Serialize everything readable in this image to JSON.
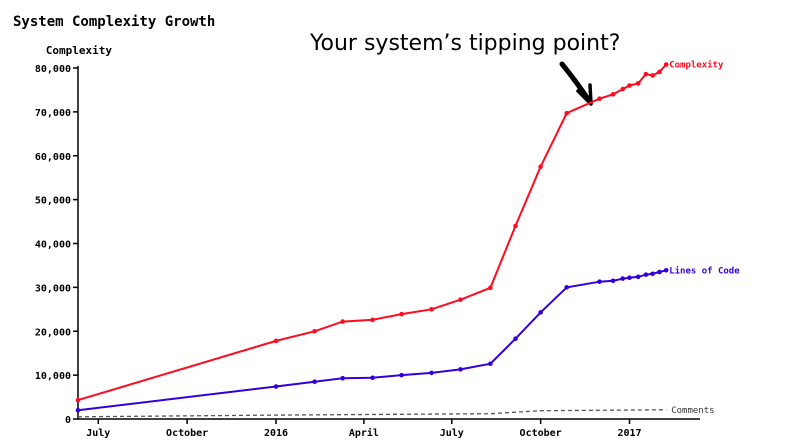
{
  "chart_data": {
    "type": "line",
    "title": "System Complexity Growth",
    "ylabel": "Complexity",
    "annotation": "Your system’s tipping point?",
    "ylim": [
      0,
      80000
    ],
    "yticks": [
      0,
      10000,
      20000,
      30000,
      40000,
      50000,
      60000,
      70000,
      80000
    ],
    "ytick_labels": [
      "0",
      "10,000",
      "20,000",
      "30,000",
      "40,000",
      "50,000",
      "60,000",
      "70,000",
      "80,000"
    ],
    "xlim": [
      "2015-06-10",
      "2017-03-15"
    ],
    "xticks": [
      "2015-07-01",
      "2015-10-01",
      "2016-01-01",
      "2016-04-01",
      "2016-07-01",
      "2016-10-01",
      "2017-01-01"
    ],
    "xtick_labels": [
      "July",
      "October",
      "2016",
      "April",
      "July",
      "October",
      "2017"
    ],
    "grid": false,
    "legend": "inline labels at line ends",
    "series": [
      {
        "name": "Complexity",
        "color": "#ff0a1e",
        "style": "solid",
        "markers": true,
        "points": [
          [
            "2015-06-10",
            4300
          ],
          [
            "2016-01-01",
            17800
          ],
          [
            "2016-02-10",
            20000
          ],
          [
            "2016-03-10",
            22200
          ],
          [
            "2016-04-10",
            22600
          ],
          [
            "2016-05-10",
            23900
          ],
          [
            "2016-06-10",
            25000
          ],
          [
            "2016-07-10",
            27200
          ],
          [
            "2016-08-10",
            29900
          ],
          [
            "2016-09-05",
            44000
          ],
          [
            "2016-10-01",
            57500
          ],
          [
            "2016-10-28",
            69700
          ],
          [
            "2016-12-01",
            73000
          ],
          [
            "2016-12-15",
            74000
          ],
          [
            "2016-12-25",
            75200
          ],
          [
            "2017-01-01",
            76000
          ],
          [
            "2017-01-10",
            76500
          ],
          [
            "2017-01-18",
            78600
          ],
          [
            "2017-01-25",
            78300
          ],
          [
            "2017-02-01",
            79100
          ],
          [
            "2017-02-08",
            80800
          ]
        ]
      },
      {
        "name": "Lines of Code",
        "color": "#3300dd",
        "style": "solid",
        "markers": true,
        "points": [
          [
            "2015-06-10",
            2000
          ],
          [
            "2016-01-01",
            7400
          ],
          [
            "2016-02-10",
            8500
          ],
          [
            "2016-03-10",
            9300
          ],
          [
            "2016-04-10",
            9400
          ],
          [
            "2016-05-10",
            10000
          ],
          [
            "2016-06-10",
            10500
          ],
          [
            "2016-07-10",
            11300
          ],
          [
            "2016-08-10",
            12600
          ],
          [
            "2016-09-05",
            18300
          ],
          [
            "2016-10-01",
            24300
          ],
          [
            "2016-10-28",
            30000
          ],
          [
            "2016-12-01",
            31300
          ],
          [
            "2016-12-15",
            31500
          ],
          [
            "2016-12-25",
            32000
          ],
          [
            "2017-01-01",
            32200
          ],
          [
            "2017-01-10",
            32400
          ],
          [
            "2017-01-18",
            32900
          ],
          [
            "2017-01-25",
            33100
          ],
          [
            "2017-02-01",
            33500
          ],
          [
            "2017-02-08",
            33900
          ]
        ]
      },
      {
        "name": "Comments",
        "color": "#555555",
        "style": "dashed",
        "markers": false,
        "points": [
          [
            "2015-06-10",
            500
          ],
          [
            "2016-01-01",
            900
          ],
          [
            "2016-08-10",
            1200
          ],
          [
            "2016-10-01",
            1900
          ],
          [
            "2017-02-08",
            2100
          ]
        ]
      }
    ]
  }
}
